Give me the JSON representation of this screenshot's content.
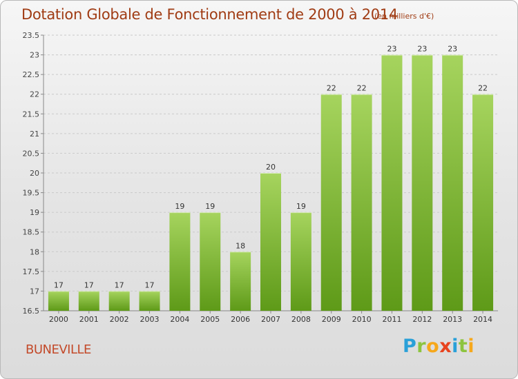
{
  "title": "Dotation Globale de Fonctionnement de 2000 à 2014",
  "unit_label": "(en milliers d'€)",
  "commune": "BUNEVILLE",
  "logo": {
    "text": "Proxiti",
    "letters": [
      "P",
      "r",
      "o",
      "x",
      "i",
      "t",
      "i"
    ]
  },
  "colors": {
    "bar_light": "#a6d45e",
    "bar_dark": "#5e9a18",
    "title": "#a03c14",
    "commune": "#c34a2a"
  },
  "chart_data": {
    "type": "bar",
    "categories": [
      "2000",
      "2001",
      "2002",
      "2003",
      "2004",
      "2005",
      "2006",
      "2007",
      "2008",
      "2009",
      "2010",
      "2011",
      "2012",
      "2013",
      "2014"
    ],
    "values": [
      17,
      17,
      17,
      17,
      19,
      19,
      18,
      20,
      19,
      22,
      22,
      23,
      23,
      23,
      22
    ],
    "value_labels": [
      "17",
      "17",
      "17",
      "17",
      "19",
      "19",
      "18",
      "20",
      "19",
      "22",
      "22",
      "23",
      "23",
      "23",
      "22"
    ],
    "yticks": [
      "16.5",
      "17",
      "17.5",
      "18",
      "18.5",
      "19",
      "19.5",
      "20",
      "20.5",
      "21",
      "21.5",
      "22",
      "22.5",
      "23",
      "23.5"
    ],
    "ylim": [
      16.5,
      23.5
    ],
    "grid": true,
    "title": "Dotation Globale de Fonctionnement de 2000 à 2014",
    "xlabel": "",
    "ylabel": ""
  }
}
